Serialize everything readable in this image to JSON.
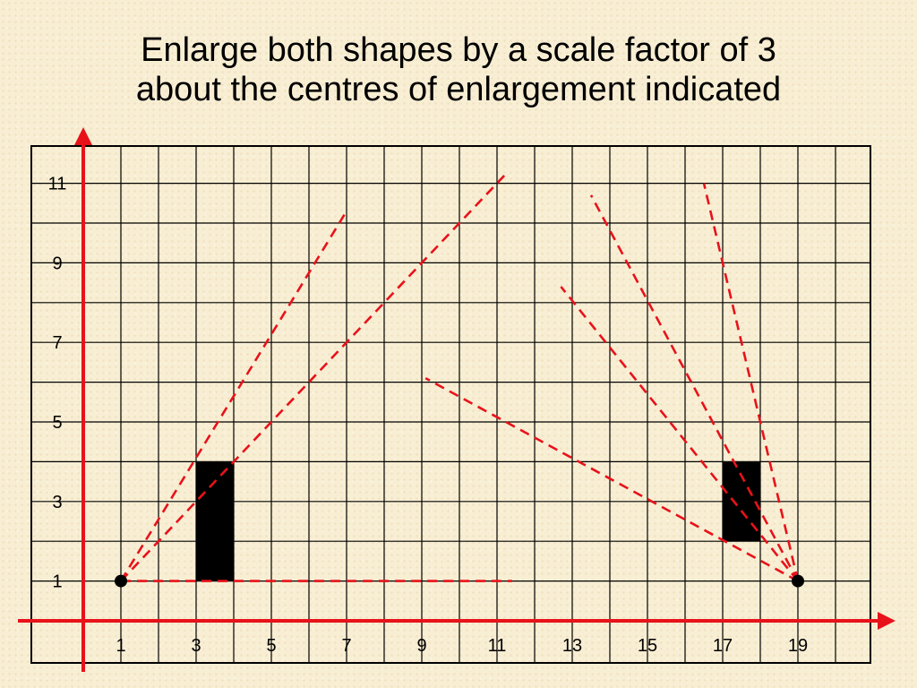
{
  "title": {
    "line1": "Enlarge both shapes by a scale factor of 3",
    "line2": "about the centres of enlargement indicated"
  },
  "grid": {
    "x_tick_labels": [
      "1",
      "3",
      "5",
      "7",
      "9",
      "11",
      "13",
      "15",
      "17",
      "19"
    ],
    "y_tick_labels": [
      "1",
      "3",
      "5",
      "7",
      "9",
      "11"
    ],
    "x_ticks": [
      1,
      3,
      5,
      7,
      9,
      11,
      13,
      15,
      17,
      19
    ],
    "y_ticks": [
      1,
      3,
      5,
      7,
      9,
      11
    ],
    "x_range": [
      0,
      21
    ],
    "y_range": [
      0,
      12.5
    ]
  },
  "shapes": [
    {
      "name": "left-rectangle",
      "x1": 3,
      "y1": 1,
      "x2": 4,
      "y2": 4,
      "color": "#000000"
    },
    {
      "name": "right-rectangle",
      "x1": 17,
      "y1": 2,
      "x2": 18,
      "y2": 4,
      "color": "#000000"
    }
  ],
  "centres": [
    {
      "name": "left-centre",
      "x": 1,
      "y": 1
    },
    {
      "name": "right-centre",
      "x": 19,
      "y": 1
    }
  ],
  "construction_lines": [
    {
      "from": [
        1,
        1
      ],
      "to": [
        7,
        10.3
      ]
    },
    {
      "from": [
        1,
        1
      ],
      "to": [
        11.2,
        11.2
      ]
    },
    {
      "from": [
        1,
        1
      ],
      "to": [
        11.4,
        1
      ]
    },
    {
      "from": [
        19,
        1
      ],
      "to": [
        13.5,
        10.7
      ]
    },
    {
      "from": [
        19,
        1
      ],
      "to": [
        16.5,
        11
      ]
    },
    {
      "from": [
        19,
        1
      ],
      "to": [
        12.7,
        8.4
      ]
    },
    {
      "from": [
        19,
        1
      ],
      "to": [
        9.1,
        6.1
      ]
    }
  ],
  "colors": {
    "axis": "#e8121a",
    "dashed": "#e8121a",
    "grid": "#000000",
    "background": "#f8eed3"
  }
}
